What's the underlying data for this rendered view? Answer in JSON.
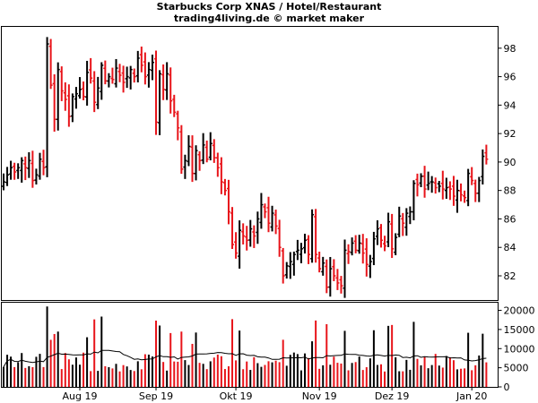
{
  "header": {
    "title": "Starbucks Corp XNAS / Hotel/Restaurant",
    "subtitle": "trading4living.de © market maker"
  },
  "colors": {
    "up": "#000000",
    "down": "#e8141a",
    "avg_line": "#000000",
    "frame": "#000000"
  },
  "chart_data": [
    {
      "type": "ohlc",
      "ylim": [
        80.3,
        99.5
      ],
      "yticks": [
        "82",
        "84",
        "86",
        "88",
        "90",
        "92",
        "94",
        "96",
        "98"
      ],
      "xticks": [
        "Aug 19",
        "Sep 19",
        "Okt 19",
        "Nov 19",
        "Dez 19",
        "Jan 20"
      ],
      "grid": false,
      "close": [
        88.6,
        89.1,
        89.6,
        89.3,
        89.6,
        90.1,
        89.6,
        90.1,
        88.7,
        89.1,
        90.2,
        89.6,
        98.3,
        95.4,
        93.0,
        96.5,
        95.0,
        94.4,
        93.2,
        94.6,
        94.8,
        95.1,
        94.6,
        96.3,
        95.9,
        94.2,
        95.2,
        96.8,
        95.7,
        96.0,
        95.8,
        96.6,
        96.1,
        95.6,
        96.0,
        96.5,
        96.0,
        97.3,
        96.8,
        96.0,
        96.5,
        97.0,
        92.8,
        96.2,
        95.1,
        96.2,
        94.3,
        93.5,
        92.4,
        89.5,
        90.1,
        91.1,
        89.2,
        90.8,
        90.1,
        91.2,
        90.2,
        91.3,
        90.3,
        89.6,
        88.6,
        88.0,
        86.5,
        84.2,
        83.6,
        85.2,
        84.8,
        84.5,
        85.3,
        84.8,
        86.0,
        87.0,
        86.5,
        85.7,
        86.4,
        85.5,
        84.0,
        82.0,
        82.7,
        83.0,
        83.5,
        83.8,
        83.9,
        84.5,
        83.5,
        86.3,
        83.5,
        82.5,
        82.9,
        81.2,
        82.5,
        82.0,
        81.5,
        81.3,
        83.8,
        83.7,
        84.3,
        83.8,
        84.3,
        83.6,
        82.8,
        83.0,
        84.6,
        85.3,
        84.5,
        84.1,
        85.8,
        83.9,
        84.7,
        86.2,
        85.7,
        86.4,
        86.5,
        88.5,
        88.4,
        89.0,
        88.1,
        88.5,
        88.6,
        88.2,
        88.3,
        88.1,
        88.2,
        88.1,
        87.6,
        88.0,
        87.7,
        87.5,
        89.2,
        88.7,
        87.8,
        88.7,
        90.4,
        90.2
      ],
      "volume_chart": {
        "ylim": [
          0,
          22000
        ],
        "yticks": [
          "0",
          "5000",
          "10000",
          "15000",
          "20000"
        ]
      }
    }
  ]
}
